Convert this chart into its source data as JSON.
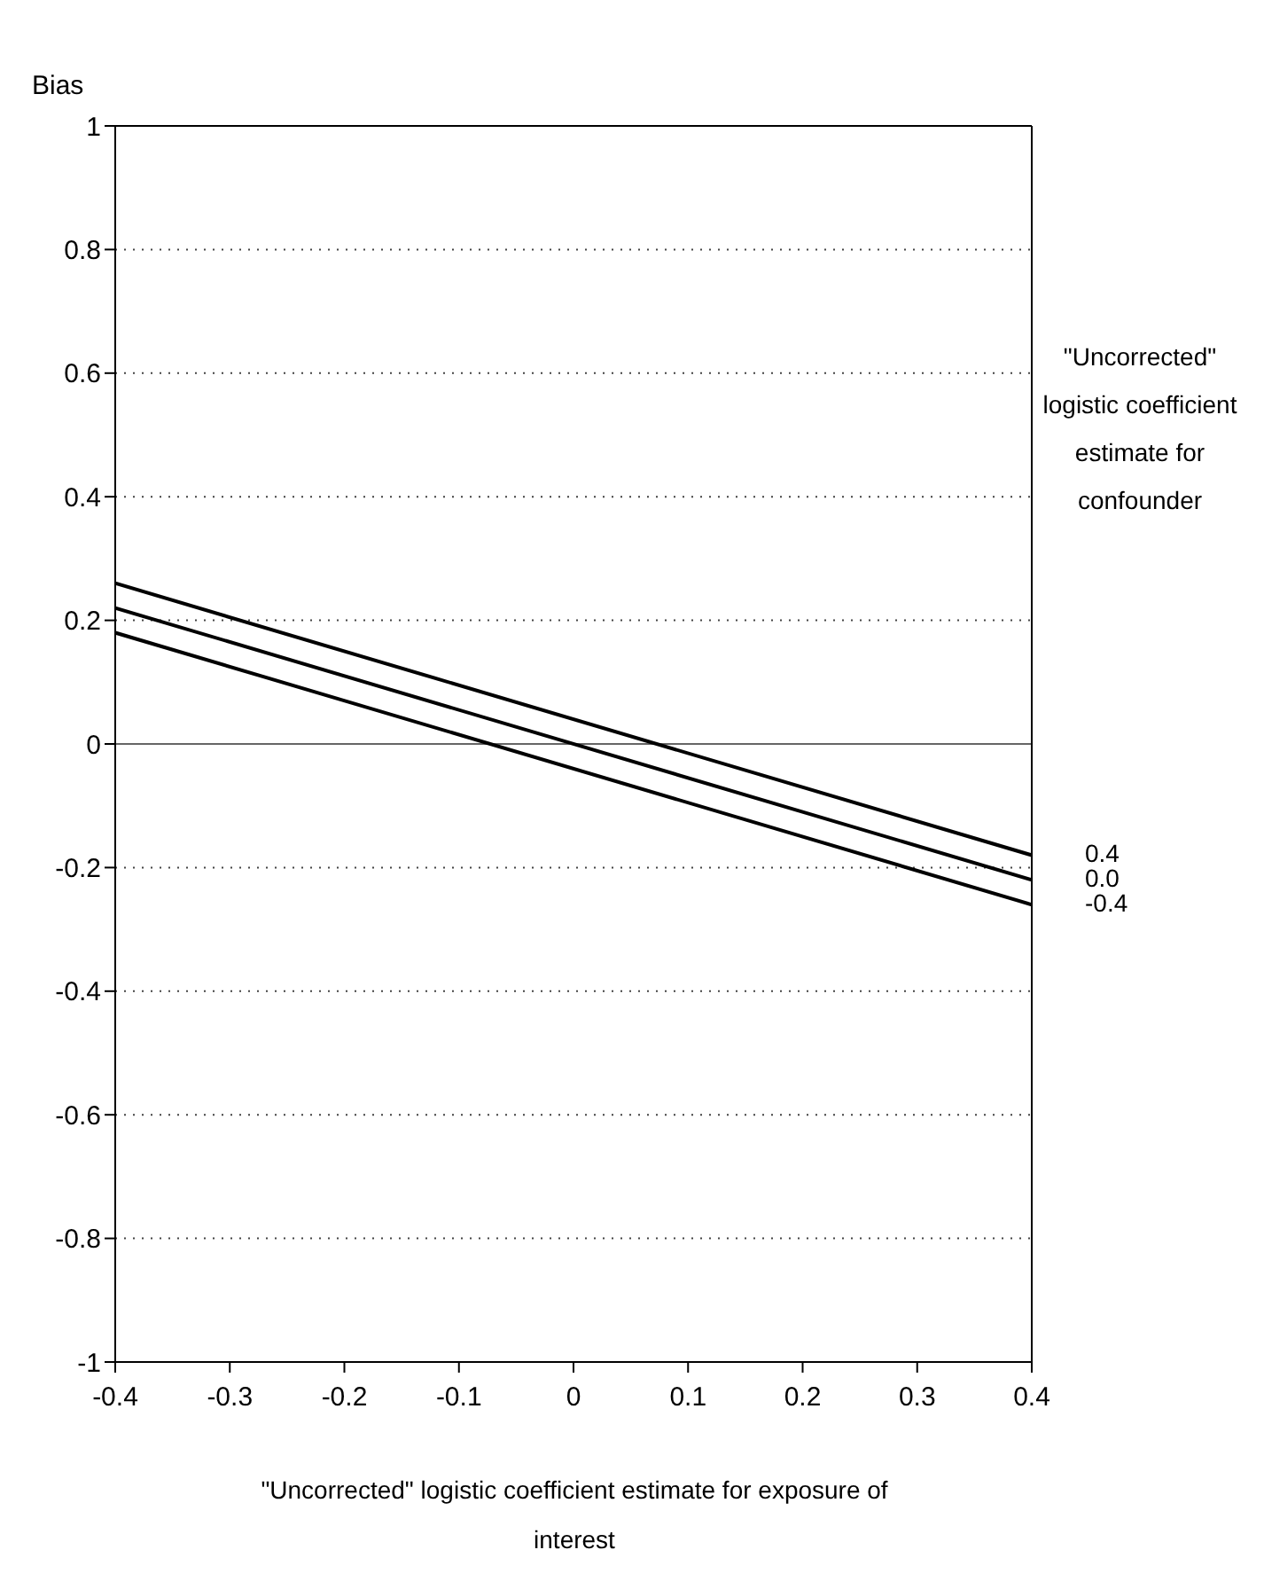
{
  "chart_data": {
    "type": "line",
    "ylabel": "Bias",
    "xlabel": "\"Uncorrected\" logistic coefficient estimate for exposure of interest",
    "legend_title": "\"Uncorrected\" logistic coefficient estimate for confounder",
    "x": [
      -0.4,
      0.4
    ],
    "series": [
      {
        "name": "0.4",
        "color": "#000000",
        "values": [
          0.26,
          -0.18
        ]
      },
      {
        "name": "0.0",
        "color": "#000000",
        "values": [
          0.22,
          -0.22
        ]
      },
      {
        "name": "-0.4",
        "color": "#000000",
        "values": [
          0.18,
          -0.26
        ]
      }
    ],
    "xlim": [
      -0.4,
      0.4
    ],
    "xticks": [
      -0.4,
      -0.3,
      -0.2,
      -0.1,
      0,
      0.1,
      0.2,
      0.3,
      0.4
    ],
    "ylim": [
      -1,
      1
    ],
    "yticks": [
      -1,
      -0.8,
      -0.6,
      -0.4,
      -0.2,
      0,
      0.2,
      0.4,
      0.6,
      0.8,
      1
    ],
    "ref_lines": [
      {
        "axis": "y",
        "value": 0,
        "color": "#666666"
      }
    ],
    "grid": "y",
    "line_style": "solid",
    "marker": "none",
    "legend": "right"
  }
}
